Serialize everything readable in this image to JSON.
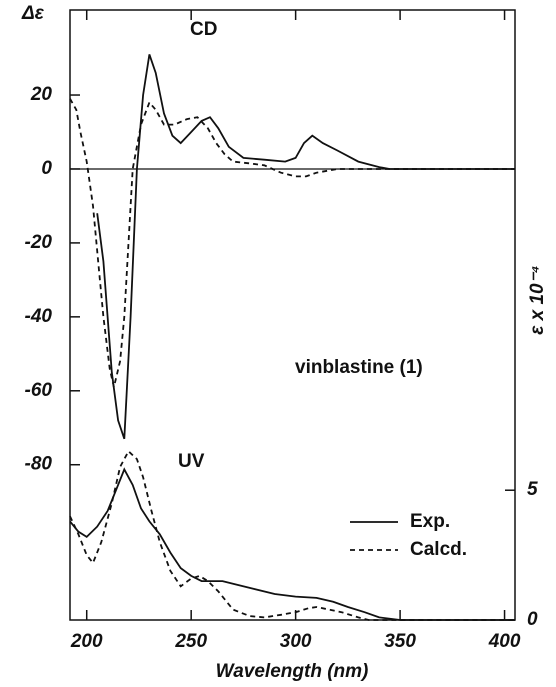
{
  "chart_data": {
    "type": "line",
    "y_label": "Δε",
    "y2_label": "ε x 10⁻⁴",
    "x_label": "Wavelength (nm)",
    "annotations": [
      "CD",
      "UV",
      "vinblastine  (1)"
    ],
    "xlim": [
      192,
      405
    ],
    "xticks": [
      200,
      250,
      300,
      350,
      400
    ],
    "ylim": [
      -122,
      43
    ],
    "yticks": [
      20,
      0,
      -20,
      -40,
      -60,
      -80
    ],
    "y2lim": [
      0,
      23.5
    ],
    "y2ticks": [
      0,
      5
    ],
    "legend": "bottom-right",
    "series": [
      {
        "name": "Exp.",
        "color": "#111",
        "style": "solid",
        "axis": "y",
        "x": [
          205,
          208,
          212,
          215,
          218,
          221,
          224,
          227,
          230,
          233,
          237,
          241,
          245,
          250,
          255,
          259,
          263,
          268,
          275,
          285,
          295,
          300,
          304,
          308,
          313,
          320,
          330,
          340,
          345,
          360,
          380,
          405
        ],
        "values": [
          -12,
          -25,
          -55,
          -68,
          -73,
          -40,
          0,
          20,
          31,
          26,
          15,
          9,
          7,
          10,
          13,
          14,
          11,
          6,
          3,
          2.5,
          2,
          3,
          7,
          9,
          7,
          5,
          2,
          0.5,
          0,
          0,
          0,
          0
        ]
      },
      {
        "name": "Calcd.",
        "color": "#111",
        "style": "dashed",
        "axis": "y",
        "x": [
          192,
          195,
          197,
          200,
          203,
          206,
          208,
          211,
          213,
          216,
          218,
          220,
          222,
          226,
          230,
          233,
          237,
          242,
          248,
          253,
          258,
          262,
          266,
          270,
          278,
          285,
          293,
          300,
          305,
          310,
          320,
          340,
          360,
          380,
          405
        ],
        "values": [
          19,
          16,
          10,
          2,
          -10,
          -28,
          -40,
          -54,
          -59,
          -52,
          -40,
          -20,
          0,
          12,
          18,
          16,
          12,
          12,
          13.5,
          14,
          11,
          7,
          4,
          2,
          1.5,
          1,
          -1,
          -2,
          -2,
          -1,
          0,
          0,
          0,
          0,
          0
        ]
      },
      {
        "name": "Exp.",
        "color": "#111",
        "style": "solid",
        "axis": "y2",
        "x": [
          192,
          196,
          200,
          205,
          210,
          214,
          218,
          222,
          226,
          230,
          235,
          240,
          245,
          250,
          255,
          260,
          265,
          270,
          280,
          290,
          300,
          310,
          318,
          325,
          333,
          340,
          350,
          370,
          405
        ],
        "values": [
          3.8,
          3.4,
          3.2,
          3.6,
          4.2,
          5.0,
          5.8,
          5.2,
          4.3,
          3.8,
          3.3,
          2.6,
          2.0,
          1.7,
          1.5,
          1.5,
          1.5,
          1.4,
          1.2,
          1.0,
          0.9,
          0.85,
          0.7,
          0.5,
          0.3,
          0.1,
          0,
          0,
          0
        ]
      },
      {
        "name": "Calcd.",
        "color": "#111",
        "style": "dashed",
        "axis": "y2",
        "x": [
          192,
          196,
          200,
          203,
          207,
          212,
          216,
          220,
          224,
          227,
          231,
          235,
          240,
          245,
          250,
          254,
          258,
          263,
          270,
          278,
          285,
          293,
          300,
          306,
          310,
          316,
          322,
          330,
          335,
          360,
          405
        ],
        "values": [
          4.0,
          3.3,
          2.5,
          2.2,
          3.0,
          4.5,
          5.9,
          6.5,
          6.2,
          5.5,
          4.2,
          3.0,
          1.9,
          1.3,
          1.6,
          1.7,
          1.5,
          1.1,
          0.4,
          0.15,
          0.1,
          0.2,
          0.3,
          0.45,
          0.5,
          0.4,
          0.3,
          0.1,
          0,
          0,
          0
        ]
      }
    ]
  }
}
